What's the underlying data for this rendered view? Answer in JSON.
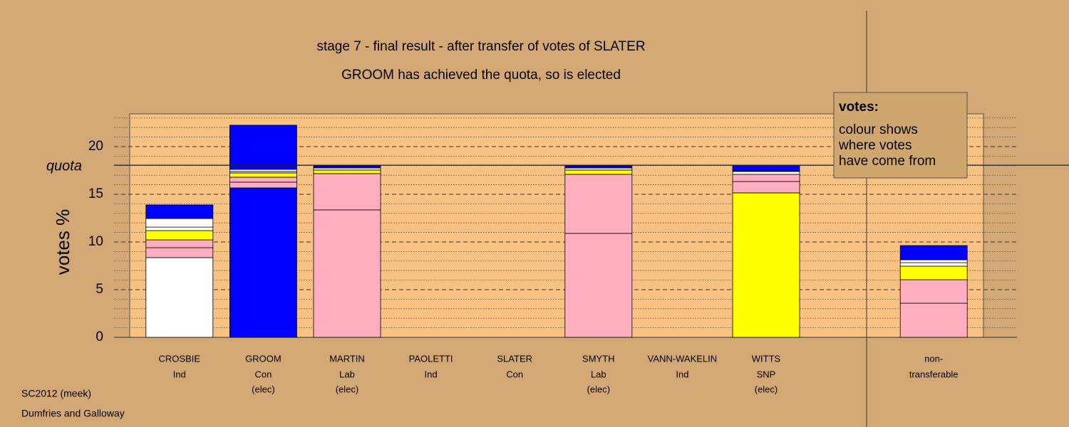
{
  "chart_data": {
    "type": "stacked_bar",
    "title": "stage 7 - final result - after transfer of votes of SLATER",
    "subtitle": "GROOM has achieved the quota, so is elected",
    "y_label": "votes %",
    "quota_label": "quota",
    "quota": 18.05,
    "categories": [
      "CROSBIE",
      "GROOM",
      "MARTIN",
      "PAOLETTI",
      "SLATER",
      "SMYTH",
      "VANN-WAKELIN",
      "WITTS",
      null,
      "non-"
    ],
    "parties": [
      "Ind",
      "Con",
      "Lab",
      "Ind",
      "Con",
      "Lab",
      "Ind",
      "SNP",
      null,
      "transferable"
    ],
    "status": [
      null,
      "(elec)",
      "(elec)",
      null,
      null,
      "(elec)",
      null,
      "(elec)",
      null,
      null
    ],
    "series": [
      {
        "colors": [
          "#ffffff",
          "#0000ff",
          "#ffaec0",
          null,
          null,
          "#ffaec0",
          null,
          "#ffff00",
          null,
          null
        ],
        "values": [
          8.36,
          15.67,
          13.36,
          null,
          null,
          10.9,
          null,
          15.15,
          null,
          null
        ]
      },
      {
        "color": "#ffaec0",
        "values": [
          1.04,
          0.6,
          3.81,
          null,
          null,
          6.19,
          null,
          1.19,
          null,
          3.58
        ]
      },
      {
        "color": "#ffaec0",
        "values": [
          0.82,
          0.52,
          null,
          null,
          null,
          null,
          null,
          0.75,
          null,
          2.46
        ]
      },
      {
        "color": "#ffff00",
        "values": [
          0.97,
          0.45,
          0.37,
          null,
          null,
          0.45,
          null,
          null,
          null,
          1.42
        ]
      },
      {
        "color": "#ffffff",
        "values": [
          0.37,
          0.15,
          0.22,
          null,
          null,
          0.22,
          null,
          0.3,
          null,
          0.37
        ]
      },
      {
        "color": "#ffffff",
        "values": [
          0.9,
          0.22,
          null,
          null,
          null,
          null,
          null,
          0.07,
          null,
          0.3
        ]
      },
      {
        "color": "#0000ff",
        "values": [
          1.42,
          4.63,
          0.22,
          null,
          null,
          0.22,
          null,
          0.6,
          null,
          1.49
        ]
      }
    ],
    "ylim": [
      0,
      23.43
    ],
    "yticks": [
      0,
      5,
      10,
      15,
      20
    ],
    "minor_yticks": [
      1,
      2,
      3,
      4,
      6,
      7,
      8,
      9,
      11,
      12,
      13,
      14,
      16,
      17,
      18,
      19,
      21,
      22,
      23
    ],
    "legend": {
      "title": "votes:",
      "lines": [
        "colour shows",
        "where votes",
        "have come from"
      ]
    },
    "footer": [
      "SC2012 (meek)",
      "Dumfries and Galloway"
    ]
  }
}
